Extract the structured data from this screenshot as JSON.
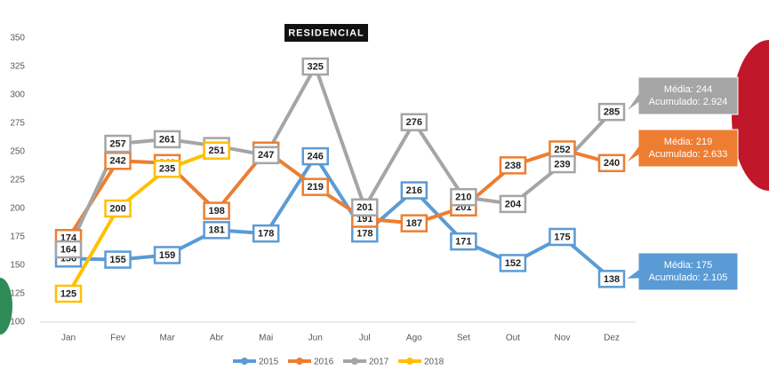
{
  "chart_data": {
    "type": "line",
    "title": "RESIDENCIAL",
    "categories": [
      "Jan",
      "Fev",
      "Mar",
      "Abr",
      "Mai",
      "Jun",
      "Jul",
      "Ago",
      "Set",
      "Out",
      "Nov",
      "Dez"
    ],
    "ylim": [
      100,
      350
    ],
    "yticks": [
      100,
      125,
      150,
      175,
      200,
      225,
      250,
      275,
      300,
      325,
      350
    ],
    "grid": false,
    "legend": "bottom",
    "series": [
      {
        "name": "2015",
        "color": "#5b9bd5",
        "values": [
          156,
          155,
          159,
          181,
          178,
          246,
          178,
          216,
          171,
          152,
          175,
          138
        ],
        "callout": [
          "Média: 175",
          "Acumulado: 2.105"
        ]
      },
      {
        "name": "2016",
        "color": "#ed7d31",
        "values": [
          174,
          242,
          240,
          198,
          251,
          219,
          191,
          187,
          201,
          238,
          252,
          240
        ],
        "callout": [
          "Média: 219",
          "Acumulado: 2.633"
        ]
      },
      {
        "name": "2017",
        "color": "#a5a5a5",
        "values": [
          164,
          257,
          261,
          255,
          247,
          325,
          201,
          276,
          210,
          204,
          239,
          285
        ],
        "callout": [
          "Média: 244",
          "Acumulado: 2.924"
        ]
      },
      {
        "name": "2018",
        "color": "#ffc000",
        "values": [
          125,
          200,
          235,
          251,
          null,
          null,
          null,
          null,
          null,
          null,
          null,
          null
        ]
      }
    ]
  }
}
